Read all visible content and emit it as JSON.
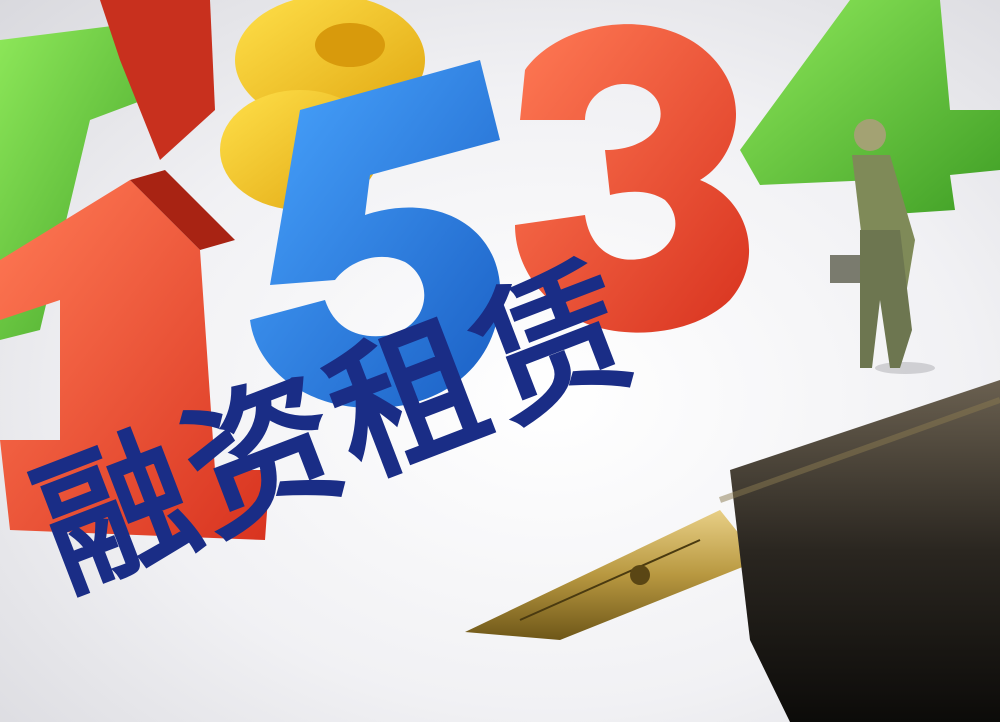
{
  "photo": {
    "caption": "融资租赁",
    "digits": [
      "7",
      "8",
      "1",
      "5",
      "3",
      "4"
    ],
    "colors": {
      "text": "#1a2d86",
      "red": "#f0523a",
      "blue": "#2a82e0",
      "yellow": "#f4c51c",
      "green": "#5cc43a"
    }
  }
}
